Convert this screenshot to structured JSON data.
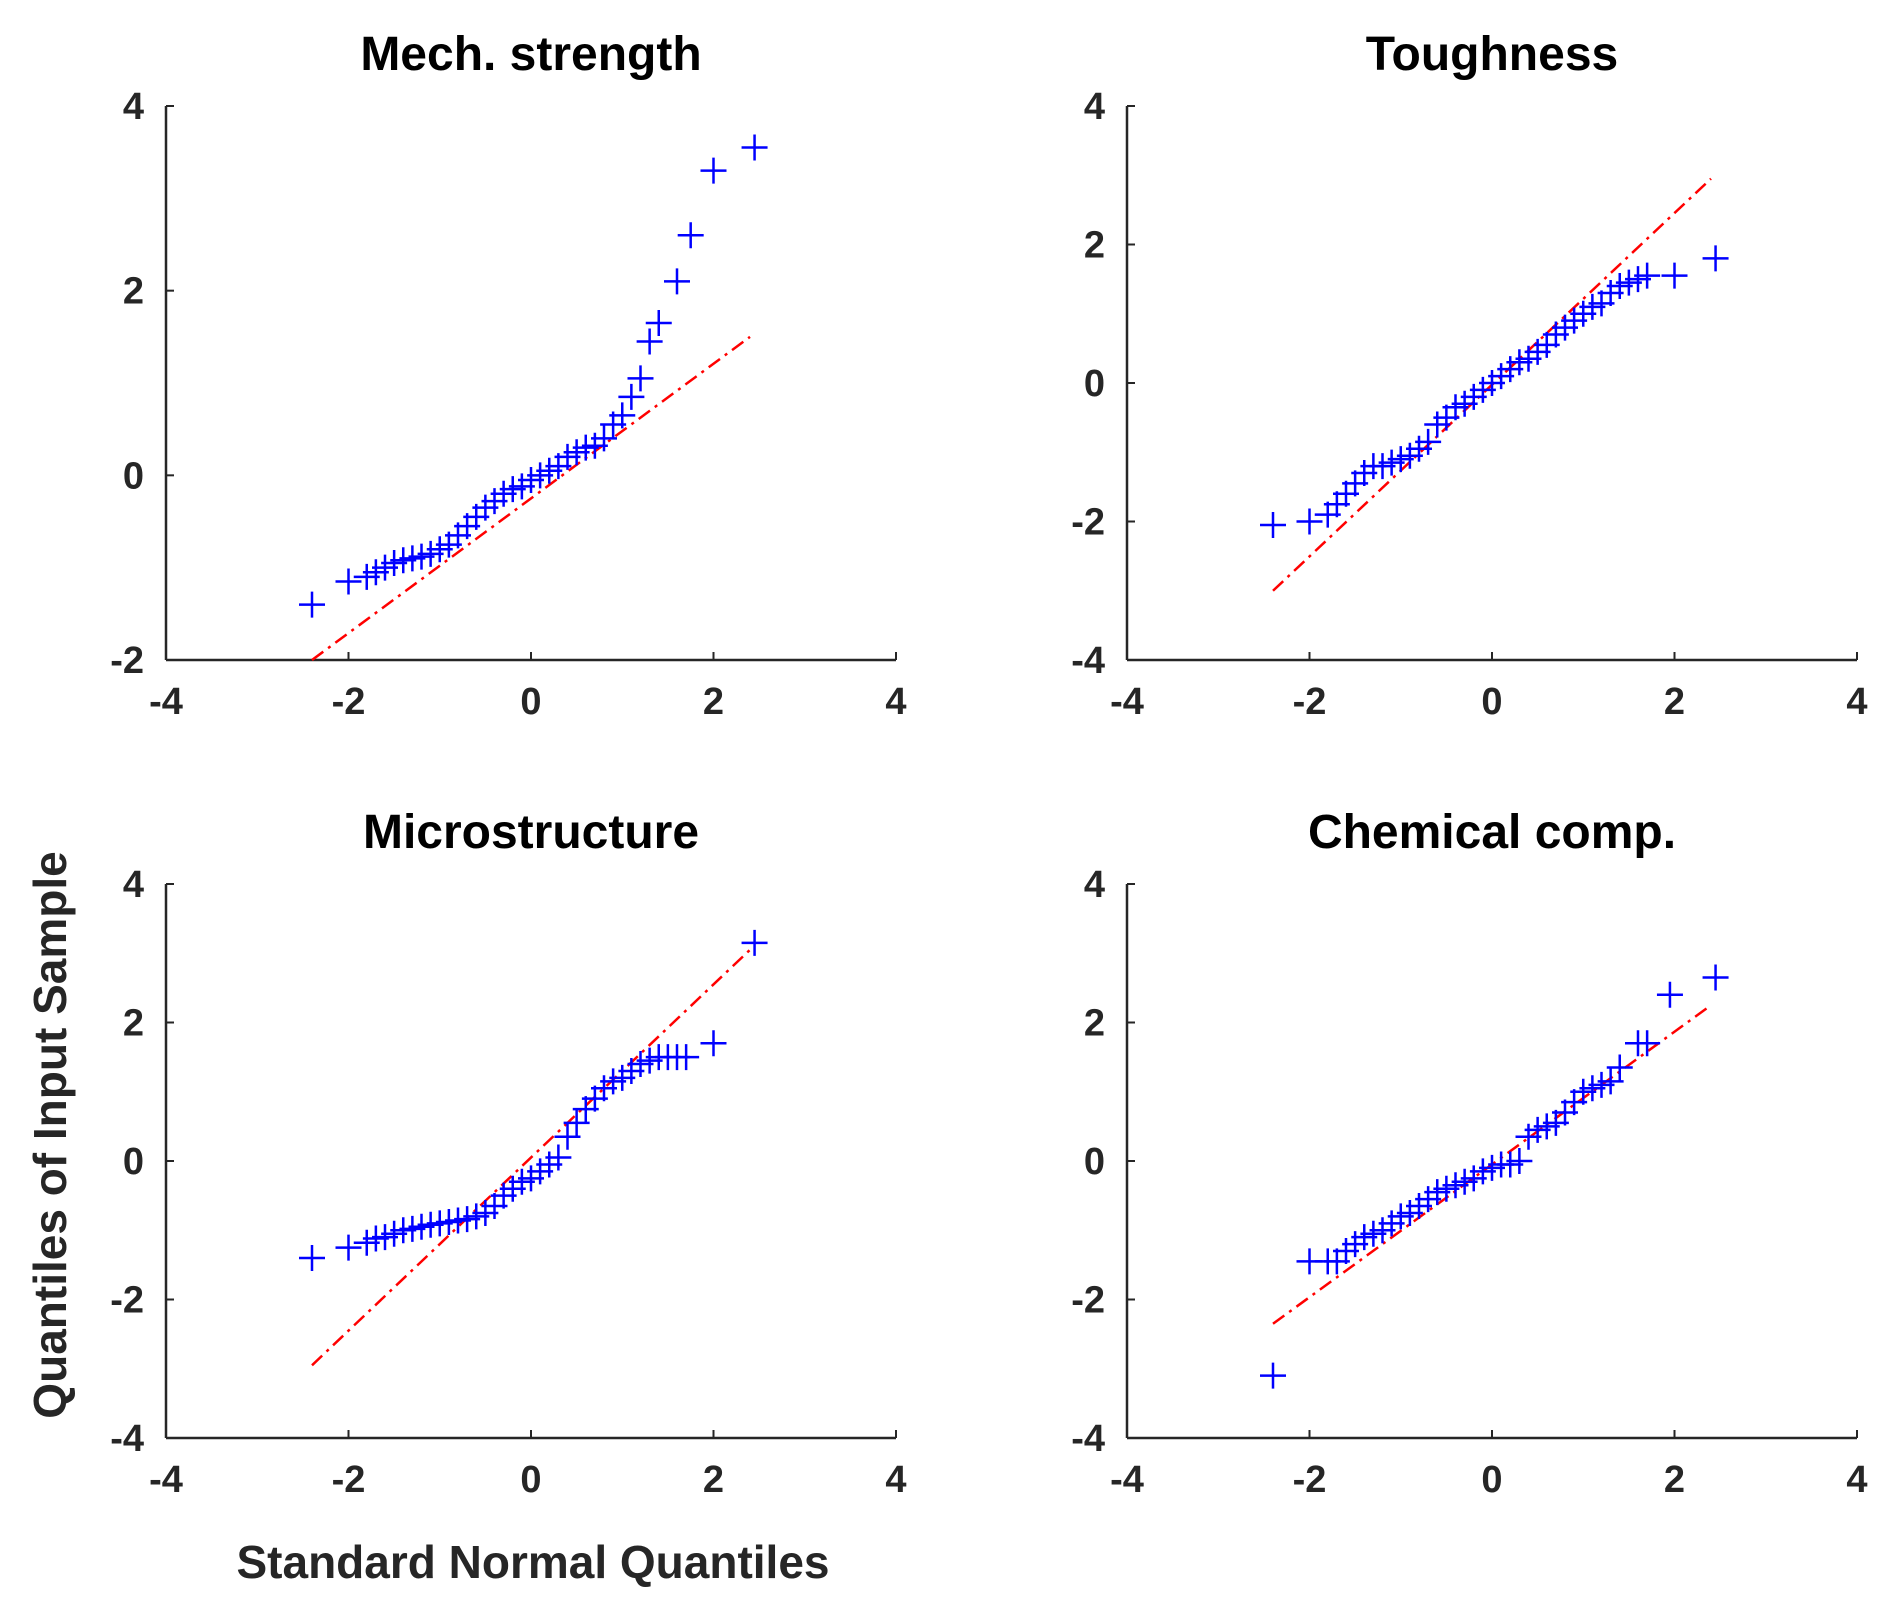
{
  "figure": {
    "ylabel": "Quantiles of Input Sample",
    "xlabel": "Standard Normal Quantiles"
  },
  "colors": {
    "marker": "#0000ff",
    "refline": "#ff0000",
    "axis": "#262626"
  },
  "chart_data": [
    {
      "type": "scatter",
      "title": "Mech. strength",
      "xlabel": "Standard Normal Quantiles",
      "ylabel": "Quantiles of Input Sample",
      "xlim": [
        -4,
        4
      ],
      "ylim": [
        -2,
        4
      ],
      "xticks": [
        -4,
        -2,
        0,
        2,
        4
      ],
      "yticks": [
        -2,
        0,
        2,
        4
      ],
      "series": [
        {
          "name": "data",
          "marker": "+",
          "x": [
            -2.4,
            -2.0,
            -1.8,
            -1.7,
            -1.6,
            -1.5,
            -1.4,
            -1.3,
            -1.2,
            -1.1,
            -1.0,
            -0.9,
            -0.8,
            -0.7,
            -0.6,
            -0.5,
            -0.4,
            -0.3,
            -0.2,
            -0.1,
            0.0,
            0.1,
            0.2,
            0.3,
            0.4,
            0.5,
            0.6,
            0.7,
            0.8,
            0.9,
            1.0,
            1.1,
            1.2,
            1.3,
            1.4,
            1.6,
            1.75,
            2.0,
            2.45
          ],
          "y": [
            -1.4,
            -1.15,
            -1.1,
            -1.05,
            -1.0,
            -0.95,
            -0.92,
            -0.9,
            -0.88,
            -0.85,
            -0.8,
            -0.75,
            -0.65,
            -0.55,
            -0.45,
            -0.35,
            -0.28,
            -0.2,
            -0.15,
            -0.12,
            -0.05,
            0.0,
            0.05,
            0.1,
            0.2,
            0.25,
            0.3,
            0.32,
            0.4,
            0.55,
            0.65,
            0.85,
            1.05,
            1.45,
            1.65,
            2.1,
            2.6,
            3.3,
            3.55
          ]
        },
        {
          "name": "reference",
          "x": [
            -2.4,
            2.4
          ],
          "y": [
            -2.0,
            1.5
          ]
        }
      ]
    },
    {
      "type": "scatter",
      "title": "Toughness",
      "xlabel": "Standard Normal Quantiles",
      "ylabel": "Quantiles of Input Sample",
      "xlim": [
        -4,
        4
      ],
      "ylim": [
        -4,
        4
      ],
      "xticks": [
        -4,
        -2,
        0,
        2,
        4
      ],
      "yticks": [
        -4,
        -2,
        0,
        2,
        4
      ],
      "series": [
        {
          "name": "data",
          "marker": "+",
          "x": [
            -2.4,
            -2.0,
            -1.8,
            -1.7,
            -1.6,
            -1.5,
            -1.4,
            -1.3,
            -1.2,
            -1.1,
            -1.0,
            -0.9,
            -0.8,
            -0.7,
            -0.6,
            -0.5,
            -0.4,
            -0.3,
            -0.2,
            -0.1,
            0.0,
            0.1,
            0.2,
            0.3,
            0.4,
            0.5,
            0.6,
            0.7,
            0.8,
            0.9,
            1.0,
            1.1,
            1.2,
            1.3,
            1.4,
            1.5,
            1.6,
            1.7,
            2.0,
            2.45
          ],
          "y": [
            -2.05,
            -2.0,
            -1.9,
            -1.75,
            -1.6,
            -1.45,
            -1.3,
            -1.2,
            -1.2,
            -1.15,
            -1.1,
            -1.05,
            -0.95,
            -0.85,
            -0.6,
            -0.5,
            -0.35,
            -0.3,
            -0.2,
            -0.1,
            0.0,
            0.1,
            0.2,
            0.3,
            0.35,
            0.45,
            0.55,
            0.7,
            0.8,
            0.9,
            1.0,
            1.1,
            1.15,
            1.3,
            1.4,
            1.45,
            1.5,
            1.55,
            1.55,
            1.8
          ]
        },
        {
          "name": "reference",
          "x": [
            -2.4,
            2.4
          ],
          "y": [
            -3.0,
            2.95
          ]
        }
      ]
    },
    {
      "type": "scatter",
      "title": "Microstructure",
      "xlabel": "Standard Normal Quantiles",
      "ylabel": "Quantiles of Input Sample",
      "xlim": [
        -4,
        4
      ],
      "ylim": [
        -4,
        4
      ],
      "xticks": [
        -4,
        -2,
        0,
        2,
        4
      ],
      "yticks": [
        -4,
        -2,
        0,
        2,
        4
      ],
      "series": [
        {
          "name": "data",
          "marker": "+",
          "x": [
            -2.4,
            -2.0,
            -1.8,
            -1.7,
            -1.6,
            -1.5,
            -1.4,
            -1.3,
            -1.2,
            -1.1,
            -1.0,
            -0.9,
            -0.8,
            -0.7,
            -0.6,
            -0.5,
            -0.4,
            -0.3,
            -0.2,
            -0.1,
            0.0,
            0.1,
            0.2,
            0.3,
            0.4,
            0.5,
            0.6,
            0.7,
            0.8,
            0.9,
            1.0,
            1.1,
            1.2,
            1.3,
            1.4,
            1.5,
            1.6,
            1.7,
            2.0,
            2.45
          ],
          "y": [
            -1.4,
            -1.25,
            -1.18,
            -1.12,
            -1.1,
            -1.05,
            -1.0,
            -0.98,
            -0.95,
            -0.92,
            -0.9,
            -0.88,
            -0.86,
            -0.84,
            -0.8,
            -0.75,
            -0.65,
            -0.5,
            -0.4,
            -0.3,
            -0.25,
            -0.15,
            -0.05,
            0.05,
            0.35,
            0.55,
            0.75,
            0.9,
            1.05,
            1.15,
            1.2,
            1.3,
            1.4,
            1.45,
            1.5,
            1.5,
            1.5,
            1.5,
            1.7,
            3.15
          ]
        },
        {
          "name": "reference",
          "x": [
            -2.4,
            2.4
          ],
          "y": [
            -2.95,
            3.05
          ]
        }
      ]
    },
    {
      "type": "scatter",
      "title": "Chemical comp.",
      "xlabel": "Standard Normal Quantiles",
      "ylabel": "Quantiles of Input Sample",
      "xlim": [
        -4,
        4
      ],
      "ylim": [
        -4,
        4
      ],
      "xticks": [
        -4,
        -2,
        0,
        2,
        4
      ],
      "yticks": [
        -4,
        -2,
        0,
        2,
        4
      ],
      "series": [
        {
          "name": "data",
          "marker": "+",
          "x": [
            -2.4,
            -2.0,
            -1.8,
            -1.7,
            -1.6,
            -1.5,
            -1.4,
            -1.3,
            -1.2,
            -1.1,
            -1.0,
            -0.9,
            -0.8,
            -0.7,
            -0.6,
            -0.5,
            -0.4,
            -0.3,
            -0.2,
            -0.1,
            0.0,
            0.1,
            0.2,
            0.3,
            0.4,
            0.5,
            0.6,
            0.7,
            0.8,
            0.9,
            1.0,
            1.1,
            1.2,
            1.3,
            1.4,
            1.6,
            1.7,
            1.95,
            2.45
          ],
          "y": [
            -3.1,
            -1.45,
            -1.45,
            -1.45,
            -1.3,
            -1.2,
            -1.1,
            -1.05,
            -1.0,
            -0.9,
            -0.8,
            -0.75,
            -0.65,
            -0.55,
            -0.45,
            -0.4,
            -0.35,
            -0.3,
            -0.25,
            -0.15,
            -0.1,
            -0.05,
            -0.05,
            0.0,
            0.35,
            0.45,
            0.5,
            0.55,
            0.7,
            0.85,
            1.0,
            1.05,
            1.1,
            1.15,
            1.35,
            1.7,
            1.7,
            2.4,
            2.65
          ]
        },
        {
          "name": "reference",
          "x": [
            -2.4,
            2.4
          ],
          "y": [
            -2.35,
            2.25
          ]
        }
      ]
    }
  ]
}
